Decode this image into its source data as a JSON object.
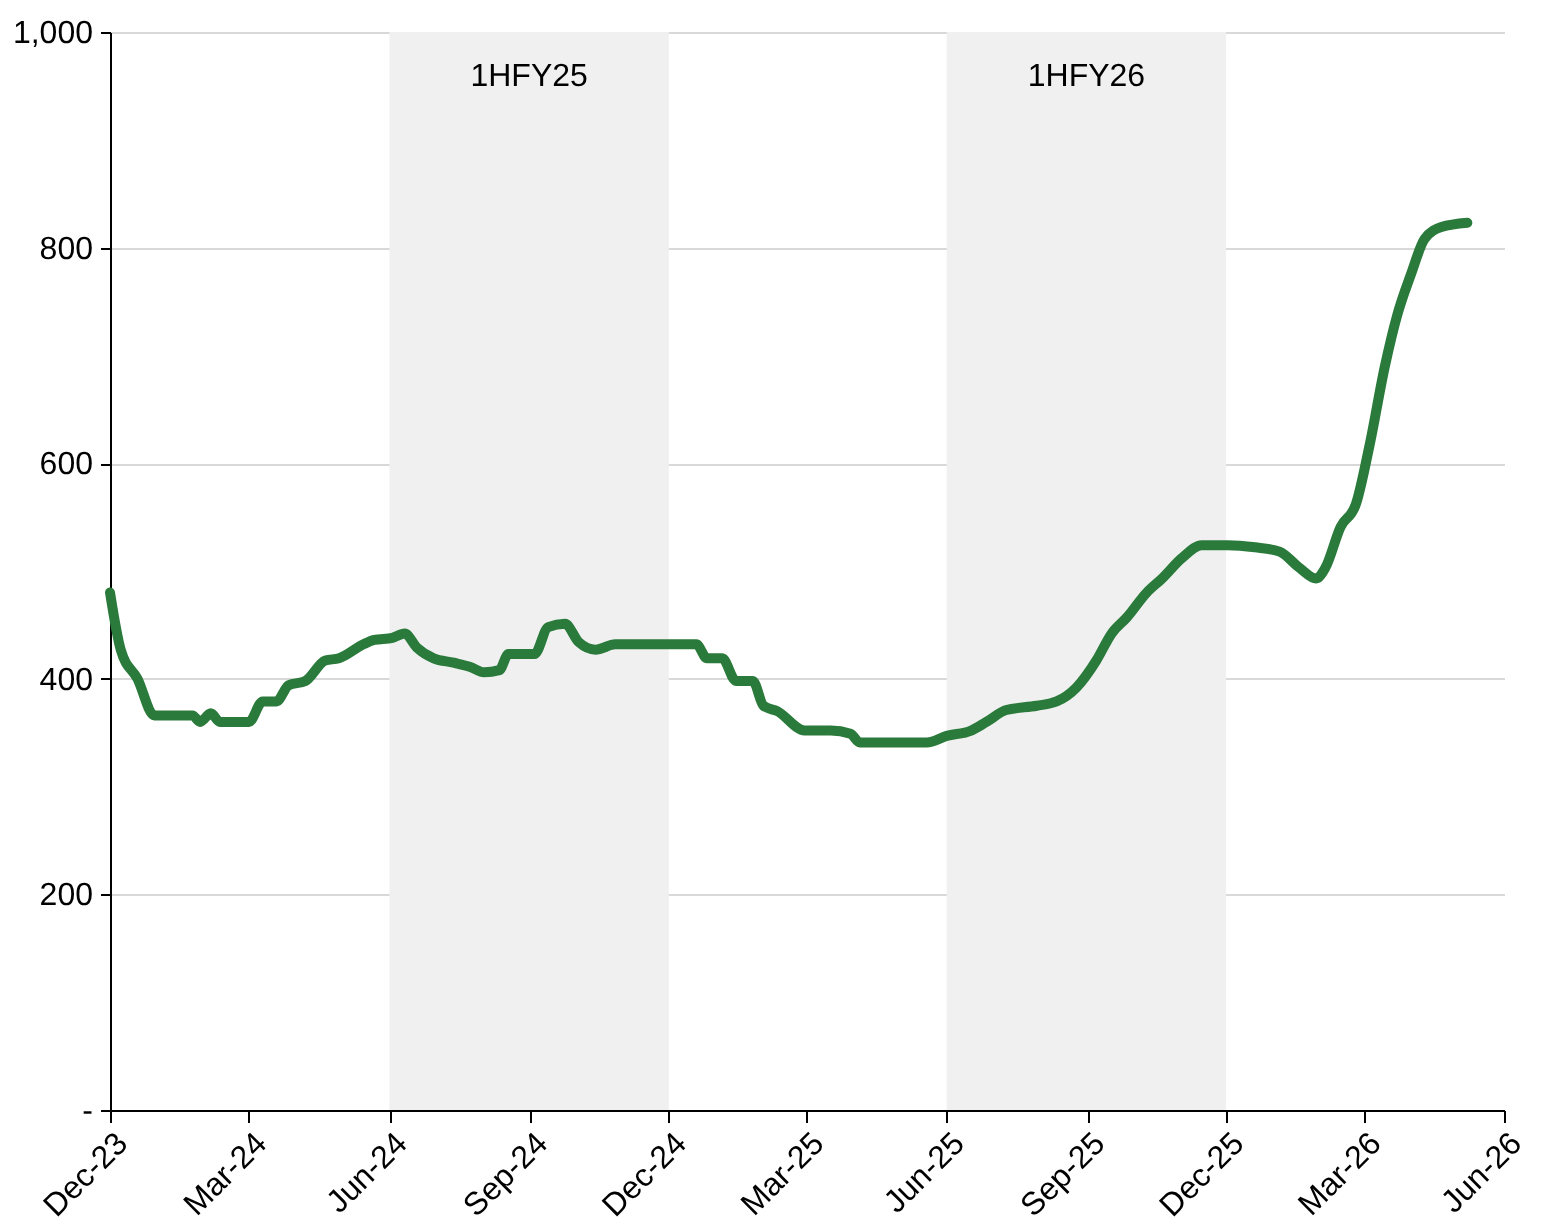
{
  "chart_data": {
    "type": "line",
    "grid": "y",
    "line_style": "solid",
    "marker": "none",
    "xlim": [
      "2023-12-01",
      "2026-06-01"
    ],
    "xticks": [
      {
        "value": "2023-12-01",
        "label": "Dec-23"
      },
      {
        "value": "2024-03-01",
        "label": "Mar-24"
      },
      {
        "value": "2024-06-01",
        "label": "Jun-24"
      },
      {
        "value": "2024-09-01",
        "label": "Sep-24"
      },
      {
        "value": "2024-12-01",
        "label": "Dec-24"
      },
      {
        "value": "2025-03-01",
        "label": "Mar-25"
      },
      {
        "value": "2025-06-01",
        "label": "Jun-25"
      },
      {
        "value": "2025-09-01",
        "label": "Sep-25"
      },
      {
        "value": "2025-12-01",
        "label": "Dec-25"
      },
      {
        "value": "2026-03-01",
        "label": "Mar-26"
      },
      {
        "value": "2026-06-01",
        "label": "Jun-26"
      }
    ],
    "ylim": [
      0,
      1000
    ],
    "yticks": [
      {
        "value": 0,
        "label": "-"
      },
      200,
      400,
      600,
      800,
      {
        "value": 1000,
        "label": "1,000"
      }
    ],
    "bands": [
      {
        "axis": "x",
        "from": "2024-06-01",
        "to": "2024-12-01",
        "label": "1HFY25",
        "color": "#f0f0f0"
      },
      {
        "axis": "x",
        "from": "2025-06-01",
        "to": "2025-12-01",
        "label": "1HFY26",
        "color": "#f0f0f0"
      }
    ],
    "x": [
      "2023-12-01",
      "2023-12-08",
      "2023-12-19",
      "2023-12-30",
      "2024-01-08",
      "2024-01-24",
      "2024-01-29",
      "2024-02-05",
      "2024-02-11",
      "2024-03-01",
      "2024-03-10",
      "2024-03-19",
      "2024-03-27",
      "2024-04-07",
      "2024-04-20",
      "2024-04-29",
      "2024-05-15",
      "2024-05-22",
      "2024-06-03",
      "2024-06-11",
      "2024-06-19",
      "2024-06-30",
      "2024-07-13",
      "2024-07-24",
      "2024-08-02",
      "2024-08-12",
      "2024-08-18",
      "2024-09-04",
      "2024-09-13",
      "2024-09-24",
      "2024-10-03",
      "2024-10-14",
      "2024-10-27",
      "2024-11-16",
      "2024-12-19",
      "2024-12-26",
      "2025-01-05",
      "2025-01-14",
      "2025-01-25",
      "2025-02-01",
      "2025-02-10",
      "2025-02-28",
      "2025-03-17",
      "2025-03-30",
      "2025-04-05",
      "2025-04-29",
      "2025-05-19",
      "2025-06-01",
      "2025-06-17",
      "2025-06-27",
      "2025-07-10",
      "2025-07-30",
      "2025-08-12",
      "2025-08-25",
      "2025-09-07",
      "2025-09-17",
      "2025-09-27",
      "2025-10-10",
      "2025-10-20",
      "2025-11-02",
      "2025-11-15",
      "2025-12-02",
      "2025-12-20",
      "2026-01-05",
      "2026-01-18",
      "2026-01-29",
      "2026-02-04",
      "2026-02-14",
      "2026-02-24",
      "2026-03-05",
      "2026-03-15",
      "2026-03-23",
      "2026-04-01",
      "2026-04-10",
      "2026-04-21",
      "2026-05-08"
    ],
    "series": [
      {
        "color": "#2a7a3b",
        "values": [
          480,
          427,
          400,
          366,
          366,
          366,
          360,
          368,
          360,
          360,
          379,
          379,
          394,
          398,
          417,
          419,
          432,
          436,
          438,
          442,
          429,
          419,
          415,
          411,
          406,
          408,
          423,
          423,
          448,
          451,
          434,
          427,
          432,
          432,
          432,
          419,
          419,
          398,
          398,
          375,
          370,
          352,
          352,
          349,
          341,
          341,
          341,
          347,
          352,
          360,
          371,
          375,
          379,
          392,
          417,
          442,
          457,
          480,
          493,
          512,
          524,
          524,
          522,
          518,
          503,
          493,
          503,
          541,
          562,
          617,
          690,
          737,
          775,
          808,
          819,
          823
        ]
      }
    ]
  }
}
